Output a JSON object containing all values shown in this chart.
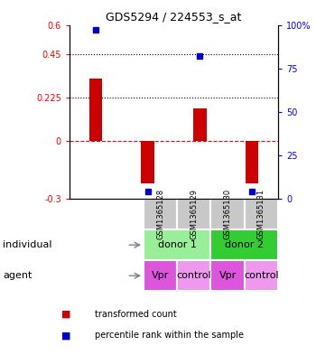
{
  "title": "GDS5294 / 224553_s_at",
  "samples": [
    "GSM1365128",
    "GSM1365129",
    "GSM1365130",
    "GSM1365131"
  ],
  "bar_values": [
    0.32,
    -0.22,
    0.17,
    -0.22
  ],
  "percentile_values": [
    97,
    4,
    82,
    4
  ],
  "ylim_left": [
    -0.3,
    0.6
  ],
  "ylim_right": [
    0,
    100
  ],
  "yticks_left": [
    -0.3,
    0,
    0.225,
    0.45,
    0.6
  ],
  "yticks_right": [
    0,
    25,
    50,
    75,
    100
  ],
  "ytick_labels_left": [
    "-0.3",
    "0",
    "0.225",
    "0.45",
    "0.6"
  ],
  "ytick_labels_right": [
    "0",
    "25",
    "50",
    "75",
    "100%"
  ],
  "hlines_dotted": [
    0.225,
    0.45
  ],
  "hline_dashed": 0,
  "bar_color": "#cc0000",
  "dot_color": "#0000cc",
  "gsm_bg": "#c8c8c8",
  "individual_bg1": "#99ee99",
  "individual_bg2": "#33cc33",
  "agent_bg_vpr": "#dd55dd",
  "agent_bg_control": "#ee99ee",
  "individuals": [
    [
      "donor 1",
      0,
      2
    ],
    [
      "donor 2",
      2,
      4
    ]
  ],
  "agents": [
    "Vpr",
    "control",
    "Vpr",
    "control"
  ],
  "agent_colors": [
    "#dd55dd",
    "#ee99ee",
    "#dd55dd",
    "#ee99ee"
  ],
  "legend_bar_label": "transformed count",
  "legend_dot_label": "percentile rank within the sample",
  "row_label_individual": "individual",
  "row_label_agent": "agent",
  "bar_width": 0.25
}
